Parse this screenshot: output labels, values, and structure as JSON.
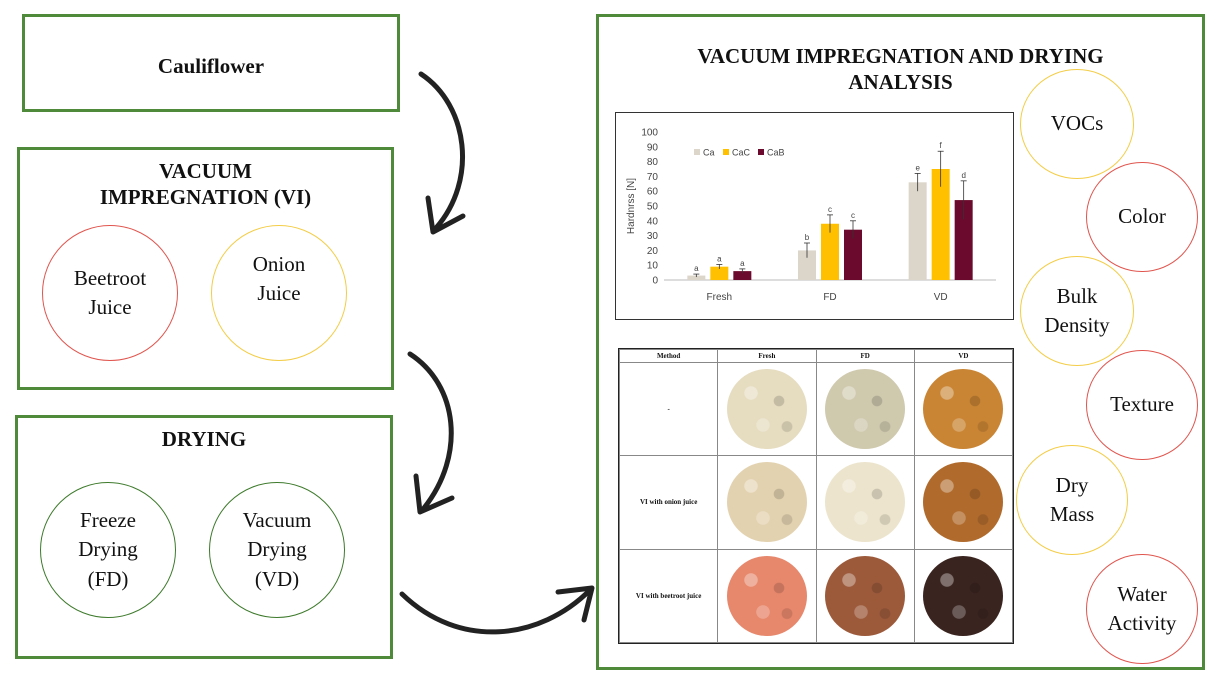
{
  "steps": {
    "cauliflower": "Cauliflower",
    "vi_title": "VACUUM IMPREGNATION (VI)",
    "vi_options": [
      "Beetroot\nJuice",
      "Onion\nJuice"
    ],
    "drying_title": "DRYING",
    "drying_options": [
      "Freeze\nDrying\n(FD)",
      "Vacuum\nDrying\n(VD)"
    ]
  },
  "analysis": {
    "title": "VACUUM  IMPREGNATION AND DRYING ANALYSIS",
    "parameters": [
      "VOCs",
      "Color",
      "Bulk\nDensity",
      "Texture",
      "Dry\nMass",
      "Water\nActivity"
    ]
  },
  "colors": {
    "box_border": "#4f8a3a",
    "circle_red": "#e0554e",
    "circle_yellow": "#f3cd48",
    "circle_green": "#3d7a2b"
  },
  "chart_data": {
    "type": "bar",
    "categories": [
      "Fresh",
      "FD",
      "VD"
    ],
    "series": [
      {
        "name": "Ca",
        "color": "#dcd6ca",
        "values": [
          3,
          20,
          66
        ],
        "errors": [
          1,
          5,
          6
        ],
        "letters": [
          "a",
          "b",
          "e"
        ]
      },
      {
        "name": "CaC",
        "color": "#ffc000",
        "values": [
          9,
          38,
          75
        ],
        "errors": [
          1.5,
          6,
          12
        ],
        "letters": [
          "a",
          "c",
          "f"
        ]
      },
      {
        "name": "CaB",
        "color": "#6b0a2c",
        "values": [
          6,
          34,
          54
        ],
        "errors": [
          1.5,
          6,
          13
        ],
        "letters": [
          "a",
          "c",
          "d"
        ]
      }
    ],
    "ylabel": "Hardnrss [N]",
    "ylim": [
      0,
      100
    ],
    "yticks": [
      0,
      10,
      20,
      30,
      40,
      50,
      60,
      70,
      80,
      90,
      100
    ],
    "legend": "top-left",
    "grid": false
  },
  "photo_table": {
    "headers": [
      "Method",
      "Fresh",
      "FD",
      "VD"
    ],
    "rows": [
      {
        "label": "-",
        "colors": [
          "#e6dcc0",
          "#cfc9ae",
          "#c98534"
        ]
      },
      {
        "label": "VI with onion juice",
        "colors": [
          "#e3d2b0",
          "#ece4cc",
          "#b06a2c"
        ]
      },
      {
        "label": "VI with beetroot juice",
        "colors": [
          "#e7876c",
          "#9c5a3b",
          "#3a2420"
        ]
      }
    ]
  }
}
